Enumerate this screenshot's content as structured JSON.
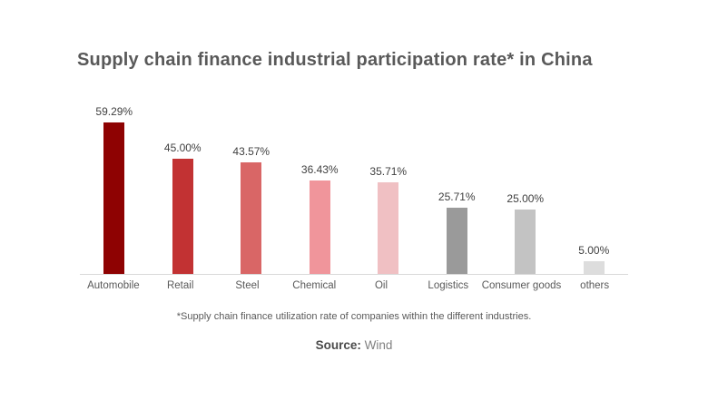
{
  "title": "Supply chain finance industrial participation rate* in China",
  "footnote": "*Supply chain finance utilization rate of companies within the different industries.",
  "source": {
    "label": "Source:",
    "value": "Wind"
  },
  "colors": {
    "background": "#ffffff",
    "title_text": "#595959",
    "value_label_text": "#404040",
    "category_label_text": "#595959",
    "axis_line": "#d9d9d9",
    "source_label_text": "#4a4a4a",
    "source_value_text": "#808080"
  },
  "chart_data": {
    "type": "bar",
    "title": "Supply chain finance industrial participation rate* in China",
    "categories": [
      "Automobile",
      "Retail",
      "Steel",
      "Chemical",
      "Oil",
      "Logistics",
      "Consumer goods",
      "others"
    ],
    "values": [
      59.29,
      45.0,
      43.57,
      36.43,
      35.71,
      25.71,
      25.0,
      5.0
    ],
    "value_labels": [
      "59.29%",
      "45.00%",
      "43.57%",
      "36.43%",
      "35.71%",
      "25.71%",
      "25.00%",
      "5.00%"
    ],
    "bar_colors": [
      "#8e0202",
      "#c23233",
      "#d96666",
      "#f0959b",
      "#f0c0c3",
      "#9a9a9a",
      "#c3c3c3",
      "#dddddd"
    ],
    "xlabel": "",
    "ylabel": "",
    "ylim": [
      0,
      65
    ],
    "grid": false,
    "legend": "none",
    "unit": "%"
  }
}
